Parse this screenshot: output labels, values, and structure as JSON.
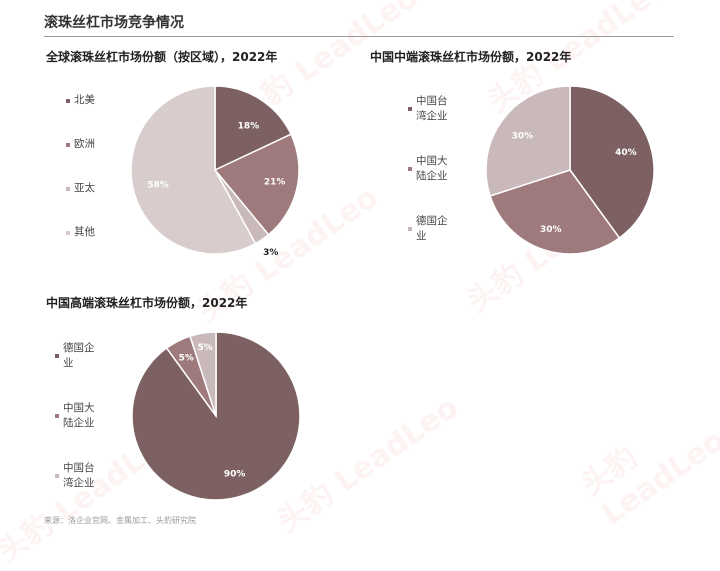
{
  "page": {
    "title": "滚珠丝杠市场竞争情况",
    "source": "来源：洛企业官网、金属加工、头豹研究院"
  },
  "colors": {
    "dark": "#7c6062",
    "mid": "#9e7a7d",
    "light": "#c9b9ba",
    "lighter": "#d8cccc",
    "stroke": "#ffffff"
  },
  "chart_data": [
    {
      "type": "pie",
      "title": "全球滚珠丝杠市场份额（按区域），2022年",
      "categories": [
        "北美",
        "欧洲",
        "亚太",
        "其他"
      ],
      "values": [
        18,
        21,
        3,
        58
      ],
      "labels": [
        "18%",
        "21%",
        "3%",
        "58%"
      ],
      "legend_position": "left"
    },
    {
      "type": "pie",
      "title": "中国中端滚珠丝杠市场份额，2022年",
      "categories": [
        "中国台湾企业",
        "中国大陆企业",
        "德国企业"
      ],
      "values": [
        40,
        30,
        30
      ],
      "labels": [
        "40%",
        "30%",
        "30%"
      ],
      "legend_position": "left"
    },
    {
      "type": "pie",
      "title": "中国高端滚珠丝杠市场份额，2022年",
      "categories": [
        "德国企业",
        "中国大陆企业",
        "中国台湾企业"
      ],
      "values": [
        90,
        5,
        5
      ],
      "labels": [
        "90%",
        "5%",
        "5%"
      ],
      "legend_position": "left"
    }
  ],
  "legends": {
    "c1": [
      "北美",
      "欧洲",
      "亚太",
      "其他"
    ],
    "c2": [
      "中国台湾企业",
      "中国大陆企业",
      "德国企业"
    ],
    "c3": [
      "德国企业",
      "中国大陆企业",
      "中国台湾企业"
    ]
  },
  "watermark": "头豹 LeadLeo"
}
